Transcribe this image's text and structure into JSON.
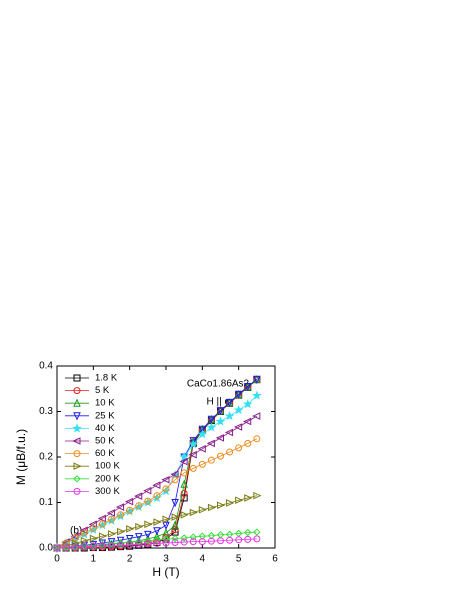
{
  "chart_data": {
    "type": "scatter-line",
    "xlabel": "H (T)",
    "ylabel": "M (μB/f.u.)",
    "annotations": [
      "CaCo1.86As2",
      "H || c",
      "(b)"
    ],
    "xlim": [
      0,
      6
    ],
    "ylim": [
      0,
      0.4
    ],
    "xticks": [
      0,
      1,
      2,
      3,
      4,
      5,
      6
    ],
    "yticks": [
      {
        "value": 0,
        "label": "0.0"
      },
      0.1,
      0.2,
      0.3,
      0.4
    ],
    "legend": "upper left",
    "x": [
      0,
      0.25,
      0.5,
      0.75,
      1,
      1.25,
      1.5,
      1.75,
      2,
      2.25,
      2.5,
      2.75,
      3,
      3.25,
      3.5,
      3.75,
      4,
      4.25,
      4.5,
      4.75,
      5,
      5.25,
      5.5
    ],
    "series": [
      {
        "name": "1.8 K",
        "color": "#000000",
        "marker": "square",
        "values": [
          0,
          0,
          0,
          0,
          0.001,
          0.001,
          0.002,
          0.003,
          0.004,
          0.006,
          0.008,
          0.012,
          0.02,
          0.035,
          0.11,
          0.23,
          0.258,
          0.28,
          0.3,
          0.318,
          0.336,
          0.353,
          0.37
        ]
      },
      {
        "name": "5 K",
        "color": "#e8201a",
        "marker": "circle",
        "values": [
          0,
          0,
          0,
          0.001,
          0.001,
          0.002,
          0.003,
          0.004,
          0.006,
          0.008,
          0.011,
          0.015,
          0.023,
          0.04,
          0.12,
          0.232,
          0.259,
          0.281,
          0.3,
          0.318,
          0.336,
          0.353,
          0.37
        ]
      },
      {
        "name": "10 K",
        "color": "#1a9a1a",
        "marker": "up",
        "values": [
          0,
          0.001,
          0.002,
          0.003,
          0.004,
          0.006,
          0.008,
          0.01,
          0.013,
          0.016,
          0.02,
          0.025,
          0.033,
          0.05,
          0.14,
          0.234,
          0.26,
          0.282,
          0.301,
          0.319,
          0.337,
          0.354,
          0.37
        ]
      },
      {
        "name": "25 K",
        "color": "#1a1ae8",
        "marker": "down",
        "values": [
          0,
          0.002,
          0.004,
          0.006,
          0.008,
          0.011,
          0.014,
          0.017,
          0.021,
          0.025,
          0.03,
          0.038,
          0.05,
          0.1,
          0.2,
          0.236,
          0.261,
          0.283,
          0.302,
          0.32,
          0.338,
          0.355,
          0.371
        ]
      },
      {
        "name": "40 K",
        "color": "#33e0f0",
        "marker": "star",
        "values": [
          0,
          0.01,
          0.02,
          0.03,
          0.04,
          0.05,
          0.06,
          0.07,
          0.08,
          0.09,
          0.1,
          0.11,
          0.125,
          0.16,
          0.2,
          0.228,
          0.25,
          0.265,
          0.278,
          0.29,
          0.303,
          0.316,
          0.335
        ]
      },
      {
        "name": "50 K",
        "color": "#8a1a8a",
        "marker": "left",
        "values": [
          0,
          0.013,
          0.026,
          0.039,
          0.052,
          0.065,
          0.077,
          0.09,
          0.102,
          0.114,
          0.126,
          0.138,
          0.15,
          0.162,
          0.19,
          0.205,
          0.218,
          0.23,
          0.242,
          0.254,
          0.266,
          0.278,
          0.29
        ]
      },
      {
        "name": "60 K",
        "color": "#f08a1a",
        "marker": "circle",
        "values": [
          0,
          0.011,
          0.022,
          0.033,
          0.043,
          0.053,
          0.063,
          0.073,
          0.083,
          0.093,
          0.103,
          0.115,
          0.13,
          0.15,
          0.165,
          0.175,
          0.184,
          0.193,
          0.202,
          0.211,
          0.22,
          0.23,
          0.24
        ]
      },
      {
        "name": "100 K",
        "color": "#7a7a10",
        "marker": "right",
        "values": [
          0,
          0.005,
          0.01,
          0.016,
          0.021,
          0.026,
          0.031,
          0.036,
          0.042,
          0.047,
          0.052,
          0.057,
          0.063,
          0.068,
          0.073,
          0.078,
          0.084,
          0.089,
          0.094,
          0.099,
          0.105,
          0.11,
          0.115
        ]
      },
      {
        "name": "200 K",
        "color": "#33e033",
        "marker": "diamond",
        "values": [
          0,
          0.002,
          0.003,
          0.005,
          0.006,
          0.008,
          0.01,
          0.011,
          0.013,
          0.014,
          0.016,
          0.018,
          0.019,
          0.021,
          0.022,
          0.024,
          0.026,
          0.027,
          0.029,
          0.03,
          0.032,
          0.034,
          0.035
        ]
      },
      {
        "name": "300 K",
        "color": "#e833e8",
        "marker": "circle",
        "values": [
          0,
          0.001,
          0.002,
          0.003,
          0.004,
          0.005,
          0.005,
          0.006,
          0.007,
          0.008,
          0.009,
          0.01,
          0.011,
          0.012,
          0.013,
          0.014,
          0.014,
          0.015,
          0.016,
          0.017,
          0.018,
          0.019,
          0.02
        ]
      }
    ]
  }
}
